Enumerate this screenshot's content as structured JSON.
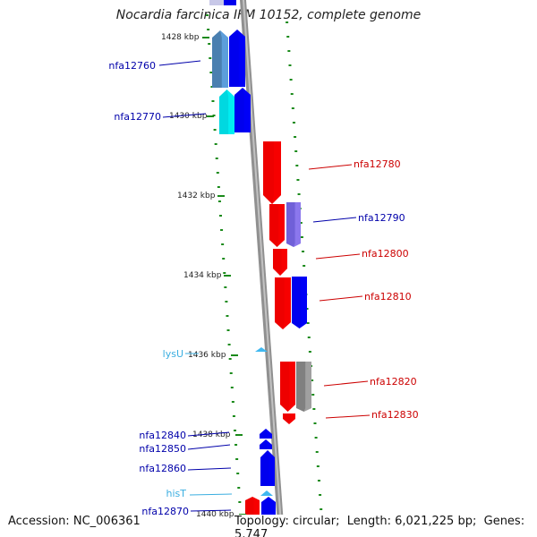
{
  "header": {
    "title": "Nocardia farcinica IFM 10152, complete genome"
  },
  "footer": {
    "accession_label": "Accession:",
    "accession": "NC_006361",
    "topology_label": "Topology:",
    "topology": "circular",
    "length_label": "Length:",
    "length": "6,021,225 bp",
    "genes_label": "Genes:",
    "genes": "5,747"
  },
  "colors": {
    "forward_gene": "#0000ee",
    "reverse_gene": "#ee0000",
    "steel_gene": "#4a7fb0",
    "cyan_gene": "#00d8e0",
    "violet_gene": "#7060d8",
    "gray_gene": "#808080",
    "rna_gene": "#40b8f0",
    "tick": "#1a8a1a",
    "backbone": "#909090"
  },
  "scale_labels": [
    "1428 kbp",
    "1430 kbp",
    "1432 kbp",
    "1434 kbp",
    "1436 kbp",
    "1438 kbp",
    "1440 kbp"
  ],
  "genes": [
    {
      "label": "nfa12760",
      "color": "steel"
    },
    {
      "label": "nfa12770",
      "color": "cyan"
    },
    {
      "label": "nfa12780",
      "color": "reverse"
    },
    {
      "label": "nfa12790",
      "color": "violet"
    },
    {
      "label": "nfa12800",
      "color": "reverse"
    },
    {
      "label": "nfa12810",
      "color": "reverse"
    },
    {
      "label": "lysU",
      "color": "rna"
    },
    {
      "label": "nfa12820",
      "color": "reverse"
    },
    {
      "label": "nfa12830",
      "color": "reverse"
    },
    {
      "label": "nfa12840",
      "color": "forward"
    },
    {
      "label": "nfa12850",
      "color": "forward"
    },
    {
      "label": "nfa12860",
      "color": "forward"
    },
    {
      "label": "hisT",
      "color": "rna"
    },
    {
      "label": "nfa12870",
      "color": "forward"
    }
  ]
}
